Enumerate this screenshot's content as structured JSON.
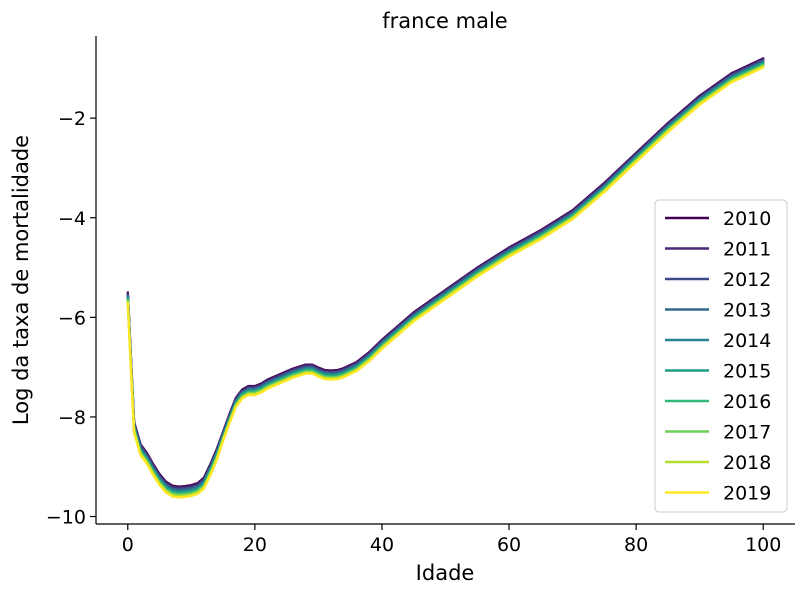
{
  "chart_data": {
    "type": "line",
    "title": "france male",
    "xlabel": "Idade",
    "ylabel": "Log da taxa de mortalidade",
    "xlim": [
      -5,
      105
    ],
    "ylim": [
      -10.15,
      -0.35
    ],
    "xticks": [
      0,
      20,
      40,
      60,
      80,
      100
    ],
    "yticks": [
      -10,
      -8,
      -6,
      -4,
      -2
    ],
    "ytick_labels": [
      "−10",
      "−8",
      "−6",
      "−4",
      "−2"
    ],
    "grid": false,
    "legend_position": "lower-right",
    "base_curve": {
      "x": [
        0,
        0.5,
        1,
        2,
        3,
        4,
        5,
        6,
        7,
        8,
        9,
        10,
        11,
        12,
        13,
        14,
        15,
        16,
        17,
        18,
        19,
        20,
        21,
        22,
        24,
        26,
        28,
        29,
        30,
        31,
        32,
        33,
        34,
        36,
        38,
        40,
        45,
        50,
        55,
        60,
        65,
        70,
        75,
        80,
        85,
        90,
        95,
        100
      ],
      "y": [
        -5.5,
        -6.8,
        -8.1,
        -8.55,
        -8.72,
        -8.95,
        -9.15,
        -9.3,
        -9.38,
        -9.4,
        -9.39,
        -9.37,
        -9.33,
        -9.22,
        -8.95,
        -8.65,
        -8.3,
        -7.95,
        -7.62,
        -7.45,
        -7.38,
        -7.38,
        -7.33,
        -7.25,
        -7.14,
        -7.03,
        -6.95,
        -6.95,
        -7.01,
        -7.06,
        -7.07,
        -7.06,
        -7.02,
        -6.9,
        -6.7,
        -6.45,
        -5.9,
        -5.45,
        -5.0,
        -4.6,
        -4.25,
        -3.85,
        -3.3,
        -2.7,
        -2.1,
        -1.55,
        -1.1,
        -0.8
      ]
    },
    "series": [
      {
        "name": "2010",
        "color": "#440154",
        "offset": 0.0
      },
      {
        "name": "2011",
        "color": "#482878",
        "offset": -0.02
      },
      {
        "name": "2012",
        "color": "#3e4989",
        "offset": -0.04
      },
      {
        "name": "2013",
        "color": "#31688e",
        "offset": -0.06
      },
      {
        "name": "2014",
        "color": "#26828e",
        "offset": -0.08
      },
      {
        "name": "2015",
        "color": "#1f9e89",
        "offset": -0.1
      },
      {
        "name": "2016",
        "color": "#35b779",
        "offset": -0.12
      },
      {
        "name": "2017",
        "color": "#6ece58",
        "offset": -0.14
      },
      {
        "name": "2018",
        "color": "#b5de2b",
        "offset": -0.16
      },
      {
        "name": "2019",
        "color": "#fde725",
        "offset": -0.18
      }
    ]
  }
}
